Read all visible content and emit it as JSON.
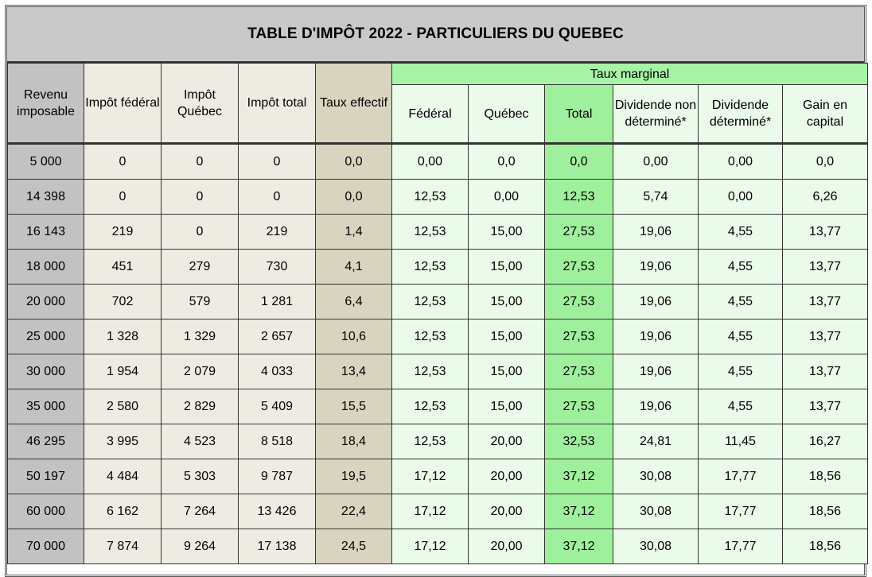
{
  "title": "TABLE D'IMPÔT 2022 - PARTICULIERS DU QUEBEC",
  "headers": {
    "revenu": "Revenu imposable",
    "impot_federal": "Impôt fédéral",
    "impot_quebec": "Impôt Québec",
    "impot_total": "Impôt total",
    "taux_effectif": "Taux effectif",
    "taux_marginal": "Taux marginal",
    "federal": "Fédéral",
    "quebec": "Québec",
    "total": "Total",
    "dividende_non_determine": "Dividende non déterminé*",
    "dividende_determine": "Dividende déterminé*",
    "gain_capital": "Gain en capital"
  },
  "colors": {
    "revenu": "#c2c2c2",
    "impot": "#eeece2",
    "taux_effectif": "#d9d4bf",
    "marginal": "#eafbe9",
    "marginal_total": "#9ff09c",
    "marginal_header": "#a8f4a6",
    "title_bar": "#c9c9c9"
  },
  "rows": [
    [
      "5 000",
      "0",
      "0",
      "0",
      "0,0",
      "0,00",
      "0,0",
      "0,0",
      "0,00",
      "0,00",
      "0,0"
    ],
    [
      "14 398",
      "0",
      "0",
      "0",
      "0,0",
      "12,53",
      "0,00",
      "12,53",
      "5,74",
      "0,00",
      "6,26"
    ],
    [
      "16 143",
      "219",
      "0",
      "219",
      "1,4",
      "12,53",
      "15,00",
      "27,53",
      "19,06",
      "4,55",
      "13,77"
    ],
    [
      "18 000",
      "451",
      "279",
      "730",
      "4,1",
      "12,53",
      "15,00",
      "27,53",
      "19,06",
      "4,55",
      "13,77"
    ],
    [
      "20 000",
      "702",
      "579",
      "1 281",
      "6,4",
      "12,53",
      "15,00",
      "27,53",
      "19,06",
      "4,55",
      "13,77"
    ],
    [
      "25 000",
      "1 328",
      "1 329",
      "2 657",
      "10,6",
      "12,53",
      "15,00",
      "27,53",
      "19,06",
      "4,55",
      "13,77"
    ],
    [
      "30 000",
      "1 954",
      "2 079",
      "4 033",
      "13,4",
      "12,53",
      "15,00",
      "27,53",
      "19,06",
      "4,55",
      "13,77"
    ],
    [
      "35 000",
      "2 580",
      "2 829",
      "5 409",
      "15,5",
      "12,53",
      "15,00",
      "27,53",
      "19,06",
      "4,55",
      "13,77"
    ],
    [
      "46 295",
      "3 995",
      "4 523",
      "8 518",
      "18,4",
      "12,53",
      "20,00",
      "32,53",
      "24,81",
      "11,45",
      "16,27"
    ],
    [
      "50 197",
      "4 484",
      "5 303",
      "9 787",
      "19,5",
      "17,12",
      "20,00",
      "37,12",
      "30,08",
      "17,77",
      "18,56"
    ],
    [
      "60 000",
      "6 162",
      "7 264",
      "13 426",
      "22,4",
      "17,12",
      "20,00",
      "37,12",
      "30,08",
      "17,77",
      "18,56"
    ],
    [
      "70 000",
      "7 874",
      "9 264",
      "17 138",
      "24,5",
      "17,12",
      "20,00",
      "37,12",
      "30,08",
      "17,77",
      "18,56"
    ]
  ]
}
